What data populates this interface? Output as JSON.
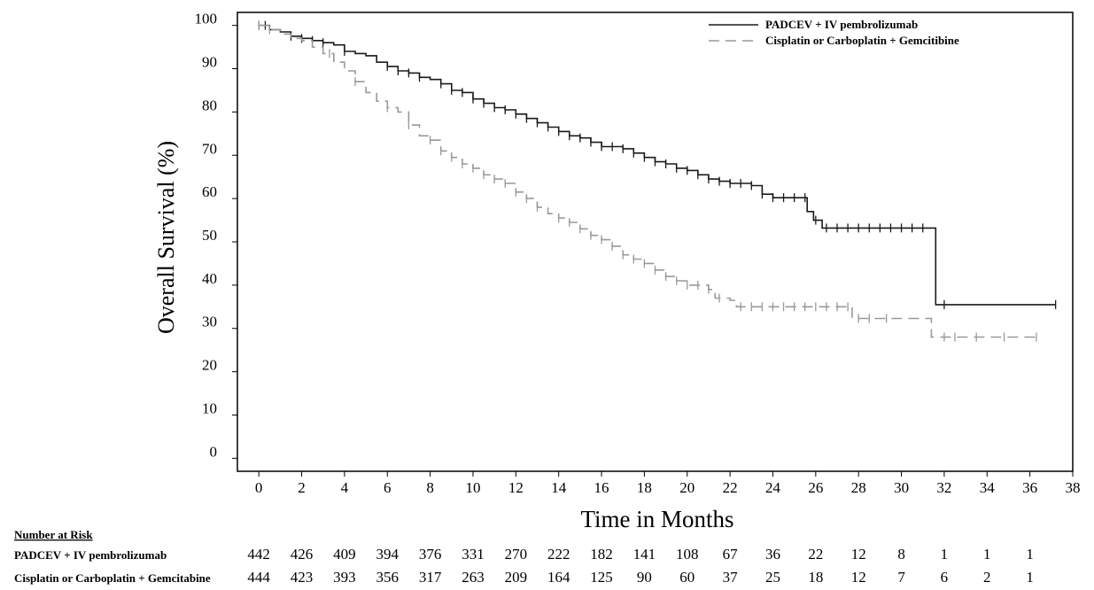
{
  "chart_data": {
    "type": "line",
    "title": "",
    "xlabel": "Time in Months",
    "ylabel": "Overall Survival (%)",
    "xlim": [
      -1,
      38
    ],
    "ylim": [
      -3,
      103
    ],
    "xticks": [
      "0",
      "2",
      "4",
      "6",
      "8",
      "10",
      "12",
      "14",
      "16",
      "18",
      "20",
      "22",
      "24",
      "26",
      "28",
      "30",
      "32",
      "34",
      "36",
      "38"
    ],
    "yticks": [
      "0",
      "10",
      "20",
      "30",
      "40",
      "50",
      "60",
      "70",
      "80",
      "90",
      "100"
    ],
    "legend_position": "top-right",
    "series": [
      {
        "name": "PADCEV + IV pembrolizumab",
        "color": "#1a1a1a",
        "dash": "solid",
        "points": [
          [
            0,
            100
          ],
          [
            0.5,
            99
          ],
          [
            1,
            98.5
          ],
          [
            1.5,
            97.5
          ],
          [
            2,
            97
          ],
          [
            2.5,
            96.5
          ],
          [
            3,
            96
          ],
          [
            3.5,
            95.5
          ],
          [
            4,
            94
          ],
          [
            4.5,
            93.5
          ],
          [
            5,
            93
          ],
          [
            5.5,
            91.5
          ],
          [
            6,
            90.5
          ],
          [
            6.5,
            89.5
          ],
          [
            7,
            89
          ],
          [
            7.5,
            88
          ],
          [
            8,
            87.5
          ],
          [
            8.5,
            86.5
          ],
          [
            9,
            85
          ],
          [
            9.5,
            84.5
          ],
          [
            10,
            83
          ],
          [
            10.5,
            82
          ],
          [
            11,
            81
          ],
          [
            11.5,
            80.5
          ],
          [
            12,
            79.5
          ],
          [
            12.5,
            78.5
          ],
          [
            13,
            77.5
          ],
          [
            13.5,
            76.5
          ],
          [
            14,
            75.5
          ],
          [
            14.5,
            74.5
          ],
          [
            15,
            74
          ],
          [
            15.5,
            73
          ],
          [
            16,
            72
          ],
          [
            17,
            71.5
          ],
          [
            17.5,
            70.5
          ],
          [
            18,
            69.5
          ],
          [
            18.5,
            68.5
          ],
          [
            19,
            68
          ],
          [
            19.5,
            67
          ],
          [
            20,
            66.5
          ],
          [
            20.5,
            65.5
          ],
          [
            21,
            64.5
          ],
          [
            21.5,
            64
          ],
          [
            22,
            63.5
          ],
          [
            23,
            63
          ],
          [
            23.5,
            61
          ],
          [
            24,
            60.2
          ],
          [
            25.3,
            60.2
          ],
          [
            25.6,
            57
          ],
          [
            25.9,
            55
          ],
          [
            26.3,
            53.2
          ],
          [
            31.3,
            53.2
          ],
          [
            31.6,
            35.5
          ],
          [
            37.2,
            35.5
          ]
        ],
        "censor": [
          0,
          0.3,
          1.5,
          2,
          2.5,
          3,
          4,
          6,
          6.5,
          7,
          7.5,
          8.5,
          9,
          9.5,
          10,
          10.5,
          11,
          11.5,
          12,
          12.5,
          13,
          13.5,
          14,
          14.5,
          15,
          15.5,
          16,
          16.5,
          17,
          17.5,
          18,
          18.5,
          19,
          19.5,
          20,
          20.5,
          21,
          21.5,
          22,
          22.5,
          23,
          23.5,
          24,
          24.5,
          25,
          25.5,
          26,
          26.5,
          27,
          27.5,
          28,
          28.5,
          29,
          29.5,
          30,
          30.5,
          31,
          32,
          37.2
        ]
      },
      {
        "name": "Cisplatin or Carboplatin + Gemcitibine",
        "color": "#999999",
        "dash": "dashed",
        "points": [
          [
            0,
            100
          ],
          [
            0.5,
            99
          ],
          [
            1,
            98
          ],
          [
            1.5,
            97
          ],
          [
            2,
            96.5
          ],
          [
            2.5,
            95
          ],
          [
            3,
            93.5
          ],
          [
            3.5,
            91.5
          ],
          [
            4,
            89.5
          ],
          [
            4.5,
            87
          ],
          [
            5,
            84.5
          ],
          [
            5.5,
            82.5
          ],
          [
            6,
            81
          ],
          [
            6.5,
            80
          ],
          [
            7,
            77
          ],
          [
            7.5,
            74.5
          ],
          [
            8,
            73.5
          ],
          [
            8.5,
            71
          ],
          [
            9,
            69.5
          ],
          [
            9.5,
            68
          ],
          [
            10,
            67
          ],
          [
            10.5,
            65.5
          ],
          [
            11,
            64.5
          ],
          [
            11.5,
            63.5
          ],
          [
            12,
            61.5
          ],
          [
            12.5,
            60
          ],
          [
            13,
            58
          ],
          [
            13.5,
            56.5
          ],
          [
            14,
            55.5
          ],
          [
            14.5,
            54.5
          ],
          [
            15,
            53
          ],
          [
            15.5,
            51.5
          ],
          [
            16,
            50.5
          ],
          [
            16.5,
            49
          ],
          [
            17,
            47
          ],
          [
            17.5,
            46
          ],
          [
            18,
            45
          ],
          [
            18.5,
            43.5
          ],
          [
            19,
            42
          ],
          [
            19.5,
            41
          ],
          [
            20,
            40
          ],
          [
            21,
            39
          ],
          [
            21.3,
            37
          ],
          [
            22,
            36.5
          ],
          [
            22.3,
            35
          ],
          [
            27.5,
            35
          ],
          [
            27.7,
            32.3
          ],
          [
            31.3,
            32.3
          ],
          [
            31.4,
            28
          ],
          [
            36.3,
            28
          ]
        ],
        "censor": [
          0,
          0.5,
          3.3,
          4.5,
          6,
          7,
          8,
          8.5,
          9,
          9.5,
          10,
          10.5,
          11,
          11.5,
          12,
          12.5,
          13,
          14,
          14.5,
          15,
          15.5,
          16,
          16.5,
          17,
          17.5,
          18,
          18.5,
          19,
          19.5,
          20,
          20.5,
          21,
          21.5,
          22.5,
          23,
          23.5,
          24,
          24.5,
          25,
          25.5,
          26,
          26.5,
          27,
          27.5,
          28,
          28.5,
          29.3,
          32,
          32.5,
          33.5,
          34.8,
          36.3
        ]
      }
    ],
    "risk_table": {
      "header": "Number at Risk",
      "rows": [
        {
          "label": "PADCEV + IV pembrolizumab",
          "values": [
            "442",
            "426",
            "409",
            "394",
            "376",
            "331",
            "270",
            "222",
            "182",
            "141",
            "108",
            "67",
            "36",
            "22",
            "12",
            "8",
            "1",
            "1",
            "1"
          ]
        },
        {
          "label": "Cisplatin or Carboplatin + Gemcitabine",
          "values": [
            "444",
            "423",
            "393",
            "356",
            "317",
            "263",
            "209",
            "164",
            "125",
            "90",
            "60",
            "37",
            "25",
            "18",
            "12",
            "7",
            "6",
            "2",
            "1"
          ]
        }
      ]
    }
  }
}
